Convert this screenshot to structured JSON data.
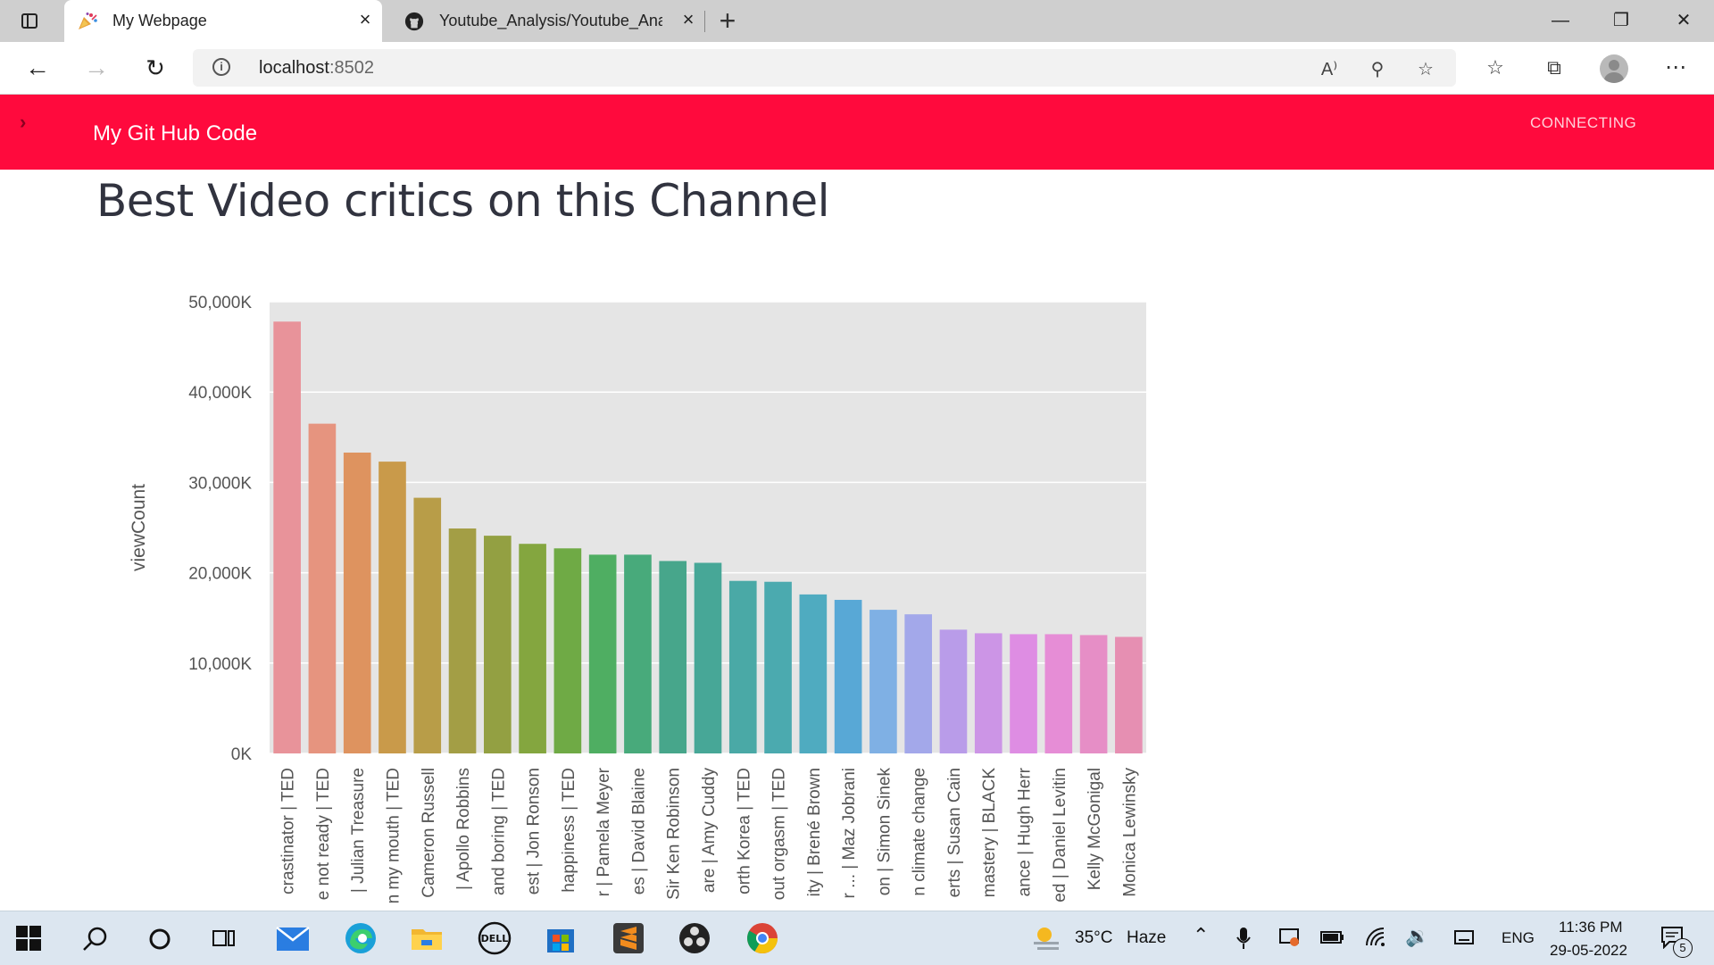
{
  "browser": {
    "tabs": [
      {
        "title": "My Webpage",
        "active": true,
        "icon": "party-popper-icon"
      },
      {
        "title": "Youtube_Analysis/Youtube_Analy",
        "active": false,
        "icon": "github-icon"
      }
    ],
    "address": {
      "host": "localhost",
      "port": ":8502"
    }
  },
  "app": {
    "header_title": "My Git Hub Code",
    "status": "CONNECTING",
    "heading": "Best Video critics on this Channel",
    "accent_color": "#ff0a3d"
  },
  "chart_data": {
    "type": "bar",
    "ylabel": "viewCount",
    "xlabel": "",
    "ylim": [
      0,
      50000
    ],
    "yticks": [
      "0K",
      "10,000K",
      "20,000K",
      "30,000K",
      "40,000K",
      "50,000K"
    ],
    "grid": true,
    "categories": [
      "crastinator | TED",
      "e not ready | TED",
      "| Julian Treasure",
      "n my mouth | TED",
      "Cameron Russell",
      "| Apollo Robbins",
      "and boring | TED",
      "est | Jon Ronson",
      "happiness | TED",
      "r | Pamela Meyer",
      "es | David Blaine",
      "Sir Ken Robinson",
      "are | Amy Cuddy",
      "orth Korea | TED",
      "out orgasm | TED",
      "ity | Brené Brown",
      "r ... | Maz Jobrani",
      "on | Simon Sinek",
      "n climate change",
      "erts | Susan Cain",
      "mastery | BLACK",
      "ance | Hugh Herr",
      "ed | Daniel Levitin",
      "Kelly McGonigal",
      "Monica Lewinsky"
    ],
    "values": [
      47800,
      36500,
      33300,
      32300,
      28300,
      24900,
      24100,
      23200,
      22700,
      22000,
      22000,
      21300,
      21100,
      19100,
      19000,
      17600,
      17000,
      15900,
      15400,
      13700,
      13300,
      13200,
      13200,
      13100,
      12900
    ],
    "colors": [
      "#e8939a",
      "#e6947f",
      "#de935f",
      "#c99a4a",
      "#b89d48",
      "#a39e45",
      "#93a042",
      "#84a63f",
      "#6faa45",
      "#4fae62",
      "#48aa7b",
      "#47a68b",
      "#47a797",
      "#4aa9a6",
      "#4baaaf",
      "#4fabc0",
      "#58a8d6",
      "#7fb0e4",
      "#a3a8ea",
      "#b99ce9",
      "#cc95e6",
      "#de8de3",
      "#e68dd6",
      "#e68ec6",
      "#e68fb2"
    ]
  },
  "taskbar": {
    "weather": {
      "temp": "35°C",
      "condition": "Haze"
    },
    "language": "ENG",
    "time": "11:36 PM",
    "date": "29-05-2022",
    "notifications": "5"
  }
}
